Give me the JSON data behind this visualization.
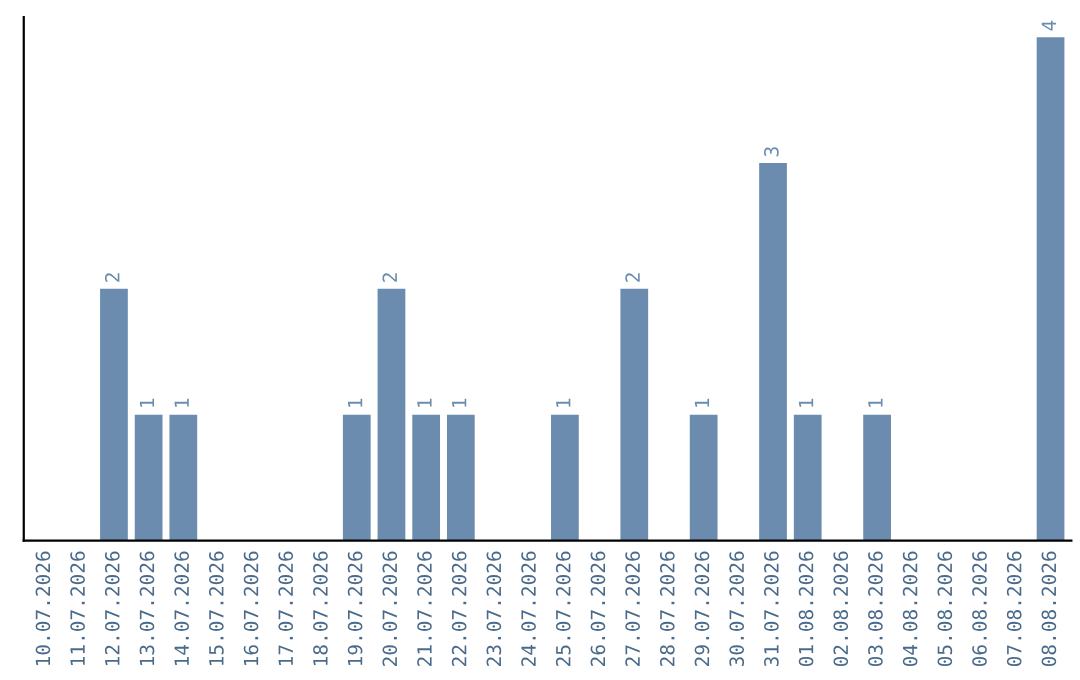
{
  "chart_data": {
    "type": "bar",
    "categories": [
      "10.07.2026",
      "11.07.2026",
      "12.07.2026",
      "13.07.2026",
      "14.07.2026",
      "15.07.2026",
      "16.07.2026",
      "17.07.2026",
      "18.07.2026",
      "19.07.2026",
      "20.07.2026",
      "21.07.2026",
      "22.07.2026",
      "23.07.2026",
      "24.07.2026",
      "25.07.2026",
      "26.07.2026",
      "27.07.2026",
      "28.07.2026",
      "29.07.2026",
      "30.07.2026",
      "31.07.2026",
      "01.08.2026",
      "02.08.2026",
      "03.08.2026",
      "04.08.2026",
      "05.08.2026",
      "06.08.2026",
      "07.08.2026",
      "08.08.2026"
    ],
    "values": [
      0,
      0,
      2,
      1,
      1,
      0,
      0,
      0,
      0,
      1,
      2,
      1,
      1,
      0,
      0,
      1,
      0,
      2,
      0,
      1,
      0,
      3,
      1,
      0,
      1,
      0,
      0,
      0,
      0,
      4
    ],
    "value_labels": [
      null,
      null,
      "2",
      "1",
      "1",
      null,
      null,
      null,
      null,
      "1",
      "2",
      "1",
      "1",
      null,
      null,
      "1",
      null,
      "2",
      null,
      "1",
      null,
      "3",
      "1",
      null,
      "1",
      null,
      null,
      null,
      null,
      "4"
    ],
    "color": "#6b8cae",
    "tick_labels": "x",
    "grid": false,
    "legend": false
  }
}
